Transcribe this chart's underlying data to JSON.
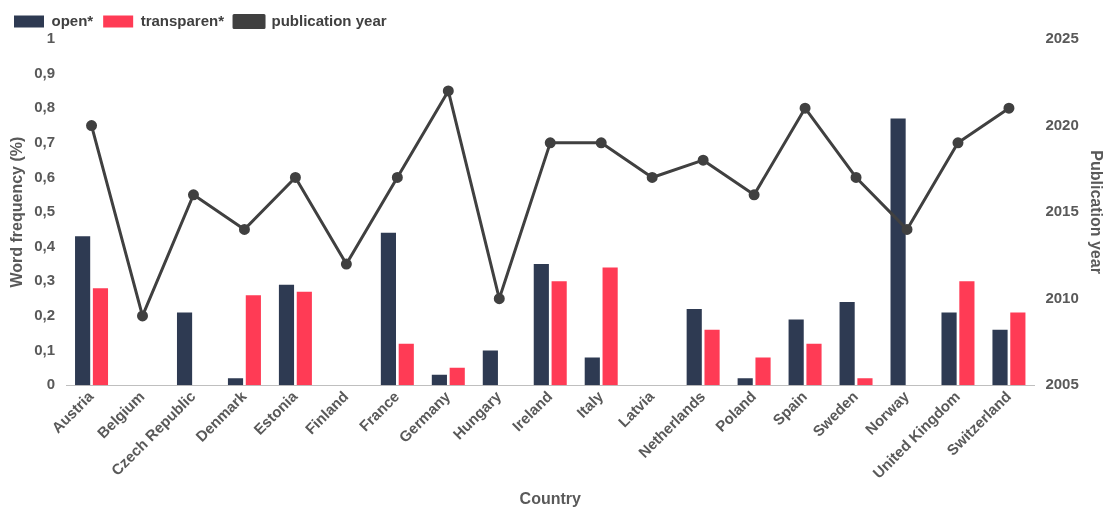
{
  "chart_data": {
    "type": "bar",
    "xlabel": "Country",
    "ylabel": "Word frequency (%)",
    "y2label": "Publication year",
    "categories": [
      "Austria",
      "Belgium",
      "Czech Republic",
      "Denmark",
      "Estonia",
      "Finland",
      "France",
      "Germany",
      "Hungary",
      "Ireland",
      "Italy",
      "Latvia",
      "Netherlands",
      "Poland",
      "Spain",
      "Sweden",
      "Norway",
      "United Kingdom",
      "Switzerland"
    ],
    "series": [
      {
        "name": "open*",
        "color": "#2e3a52",
        "values": [
          0.43,
          0,
          0.21,
          0.02,
          0.29,
          0,
          0.44,
          0.03,
          0.1,
          0.35,
          0.08,
          0,
          0.22,
          0.02,
          0.19,
          0.24,
          0.77,
          0.21,
          0.16
        ]
      },
      {
        "name": "transparen*",
        "color": "#ff3b55",
        "values": [
          0.28,
          0,
          0,
          0.26,
          0.27,
          0,
          0.12,
          0.05,
          0,
          0.3,
          0.34,
          0,
          0.16,
          0.08,
          0.12,
          0.02,
          0,
          0.3,
          0.21
        ]
      },
      {
        "name": "publication year",
        "type": "line",
        "axis": "y2",
        "color": "#404040",
        "values": [
          2020,
          2009,
          2016,
          2014,
          2017,
          2012,
          2017,
          2022,
          2010,
          2019,
          2019,
          2017,
          2018,
          2016,
          2021,
          2017,
          2014,
          2019,
          2021
        ]
      }
    ],
    "ylim": [
      0,
      1
    ],
    "yticks": [
      0,
      {
        "value": 0.1,
        "label": "0,1"
      },
      {
        "value": 0.2,
        "label": "0,2"
      },
      {
        "value": 0.3,
        "label": "0,3"
      },
      {
        "value": 0.4,
        "label": "0,4"
      },
      {
        "value": 0.5,
        "label": "0,5"
      },
      {
        "value": 0.6,
        "label": "0,6"
      },
      {
        "value": 0.7,
        "label": "0,7"
      },
      {
        "value": 0.8,
        "label": "0,8"
      },
      {
        "value": 0.9,
        "label": "0,9"
      },
      1
    ],
    "y2lim": [
      2005,
      2025
    ],
    "y2ticks": [
      2005,
      2010,
      2015,
      2020,
      2025
    ],
    "legend": "top left",
    "grid": false,
    "marker": "circle",
    "line_style": "solid"
  }
}
